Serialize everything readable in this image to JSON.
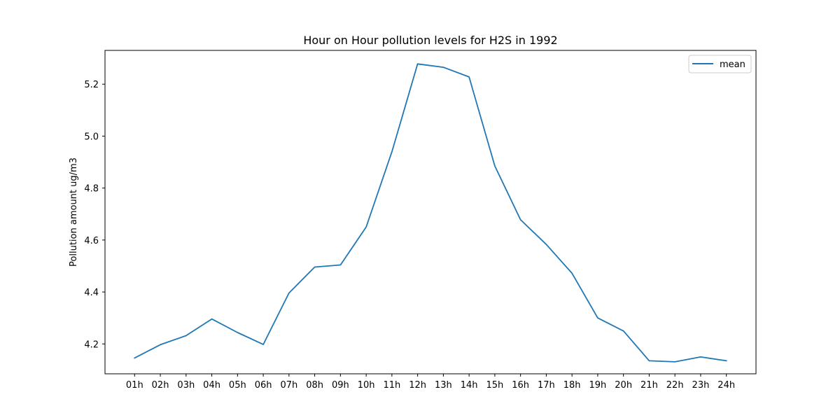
{
  "chart_data": {
    "type": "line",
    "title": "Hour on Hour pollution levels for H2S in 1992",
    "xlabel": "",
    "ylabel": "Pollution amount ug/m3",
    "categories": [
      "01h",
      "02h",
      "03h",
      "04h",
      "05h",
      "06h",
      "07h",
      "08h",
      "09h",
      "10h",
      "11h",
      "12h",
      "13h",
      "14h",
      "15h",
      "16h",
      "17h",
      "18h",
      "19h",
      "20h",
      "21h",
      "22h",
      "23h",
      "24h"
    ],
    "series": [
      {
        "name": "mean",
        "color": "#1f77b4",
        "values": [
          4.146,
          4.197,
          4.232,
          4.296,
          4.244,
          4.198,
          4.396,
          4.496,
          4.504,
          4.65,
          4.94,
          5.278,
          5.265,
          5.228,
          4.885,
          4.678,
          4.583,
          4.472,
          4.3,
          4.25,
          4.135,
          4.131,
          4.15,
          4.135
        ]
      }
    ],
    "ylim": [
      4.085,
      5.33
    ],
    "yticks": [
      "4.2",
      "4.4",
      "4.6",
      "4.8",
      "5.0",
      "5.2"
    ],
    "grid": false,
    "legend_position": "top-right"
  }
}
